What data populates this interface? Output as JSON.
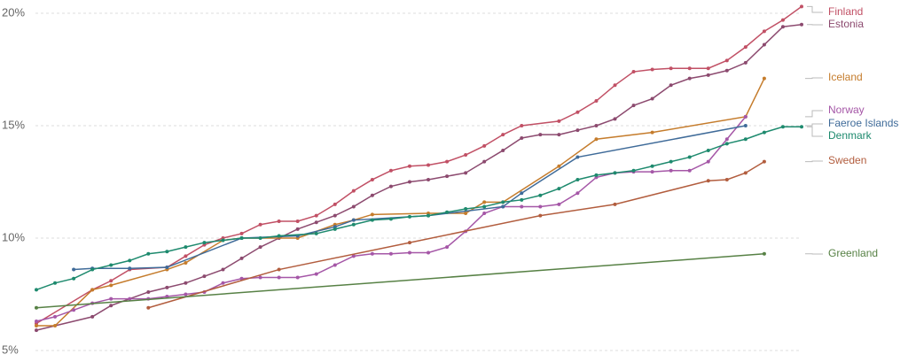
{
  "chart_data": {
    "type": "line",
    "xlim": [
      0,
      41
    ],
    "ylim": [
      5,
      20
    ],
    "yticks": [
      {
        "value": 5,
        "label": "5%"
      },
      {
        "value": 10,
        "label": "10%"
      },
      {
        "value": 15,
        "label": "15%"
      },
      {
        "value": 20,
        "label": "20%"
      }
    ],
    "grid": true,
    "series": [
      {
        "name": "Finland",
        "color": "#c15065",
        "x": [
          0,
          3,
          4,
          5,
          7,
          8,
          9,
          10,
          11,
          12,
          13,
          14,
          15,
          16,
          17,
          18,
          19,
          20,
          21,
          22,
          23,
          24,
          25,
          26,
          28,
          29,
          30,
          31,
          32,
          33,
          34,
          35,
          36,
          37,
          38,
          39,
          40,
          41
        ],
        "values": [
          6.2,
          7.7,
          8.1,
          8.6,
          8.7,
          9.2,
          9.7,
          10.0,
          10.2,
          10.6,
          10.75,
          10.75,
          11.0,
          11.5,
          12.1,
          12.6,
          13.0,
          13.2,
          13.25,
          13.4,
          13.7,
          14.1,
          14.6,
          15.0,
          15.2,
          15.6,
          16.1,
          16.8,
          17.4,
          17.5,
          17.55,
          17.55,
          17.55,
          17.9,
          18.5,
          19.2,
          19.7,
          20.3
        ]
      },
      {
        "name": "Estonia",
        "color": "#8c4a6f",
        "x": [
          0,
          3,
          4,
          6,
          7,
          8,
          9,
          10,
          11,
          12,
          13,
          14,
          15,
          16,
          17,
          18,
          19,
          20,
          21,
          22,
          23,
          24,
          25,
          26,
          27,
          28,
          29,
          30,
          31,
          32,
          33,
          34,
          35,
          36,
          37,
          38,
          39,
          40,
          41
        ],
        "values": [
          5.9,
          6.5,
          7.0,
          7.6,
          7.8,
          8.0,
          8.3,
          8.6,
          9.1,
          9.6,
          10.0,
          10.4,
          10.7,
          11.0,
          11.4,
          11.9,
          12.3,
          12.5,
          12.6,
          12.75,
          12.9,
          13.4,
          13.9,
          14.45,
          14.6,
          14.6,
          14.8,
          15.0,
          15.3,
          15.9,
          16.2,
          16.8,
          17.1,
          17.25,
          17.45,
          17.8,
          18.6,
          19.4,
          19.5
        ]
      },
      {
        "name": "Iceland",
        "color": "#c57c2c",
        "x": [
          0,
          1,
          3,
          4,
          7,
          8,
          10,
          11,
          14,
          16,
          17,
          18,
          21,
          23,
          24,
          25,
          28,
          30,
          33,
          38,
          39
        ],
        "values": [
          6.1,
          6.1,
          7.7,
          7.9,
          8.6,
          8.9,
          9.9,
          10.0,
          10.0,
          10.6,
          10.8,
          11.05,
          11.1,
          11.1,
          11.6,
          11.6,
          13.2,
          14.4,
          14.7,
          15.4,
          17.1
        ]
      },
      {
        "name": "Norway",
        "color": "#a557a7",
        "x": [
          0,
          1,
          2,
          3,
          4,
          5,
          6,
          7,
          8,
          9,
          10,
          11,
          12,
          13,
          14,
          15,
          16,
          17,
          18,
          19,
          20,
          21,
          22,
          23,
          24,
          25,
          26,
          27,
          28,
          29,
          30,
          31,
          32,
          33,
          34,
          35,
          36,
          37,
          38
        ],
        "values": [
          6.3,
          6.5,
          6.8,
          7.1,
          7.3,
          7.3,
          7.3,
          7.4,
          7.5,
          7.6,
          8.0,
          8.2,
          8.25,
          8.25,
          8.25,
          8.4,
          8.8,
          9.2,
          9.3,
          9.3,
          9.35,
          9.35,
          9.6,
          10.3,
          11.1,
          11.4,
          11.4,
          11.4,
          11.5,
          12.0,
          12.7,
          12.9,
          12.95,
          12.95,
          13.0,
          13.0,
          13.4,
          14.4,
          15.4
        ]
      },
      {
        "name": "Faeroe Islands",
        "color": "#3f6b99",
        "x": [
          2,
          3,
          5,
          7,
          11,
          14,
          16,
          17,
          21,
          25,
          26,
          29,
          38
        ],
        "values": [
          8.6,
          8.65,
          8.65,
          8.7,
          10.0,
          10.1,
          10.5,
          10.8,
          11.0,
          11.4,
          12.0,
          13.6,
          15.0
        ]
      },
      {
        "name": "Denmark",
        "color": "#1e8a6e",
        "x": [
          0,
          1,
          2,
          3,
          4,
          5,
          6,
          7,
          8,
          9,
          10,
          11,
          12,
          13,
          15,
          16,
          17,
          18,
          19,
          20,
          21,
          22,
          23,
          24,
          25,
          26,
          27,
          28,
          29,
          30,
          31,
          32,
          33,
          34,
          35,
          36,
          37,
          38,
          39,
          40,
          41
        ],
        "values": [
          7.7,
          8.0,
          8.2,
          8.6,
          8.8,
          9.0,
          9.3,
          9.4,
          9.6,
          9.8,
          9.9,
          10.0,
          10.0,
          10.1,
          10.2,
          10.4,
          10.6,
          10.8,
          10.85,
          10.95,
          11.0,
          11.15,
          11.3,
          11.4,
          11.6,
          11.7,
          11.9,
          12.2,
          12.6,
          12.8,
          12.9,
          13.0,
          13.2,
          13.4,
          13.6,
          13.9,
          14.2,
          14.4,
          14.7,
          14.95,
          14.95
        ]
      },
      {
        "name": "Sweden",
        "color": "#b25d3e",
        "x": [
          6,
          13,
          20,
          27,
          31,
          36,
          37,
          38,
          39
        ],
        "values": [
          6.9,
          8.6,
          9.8,
          11.0,
          11.5,
          12.55,
          12.6,
          12.9,
          13.4
        ]
      },
      {
        "name": "Greenland",
        "color": "#578145",
        "x": [
          0,
          39
        ],
        "values": [
          6.9,
          9.3
        ]
      }
    ]
  }
}
